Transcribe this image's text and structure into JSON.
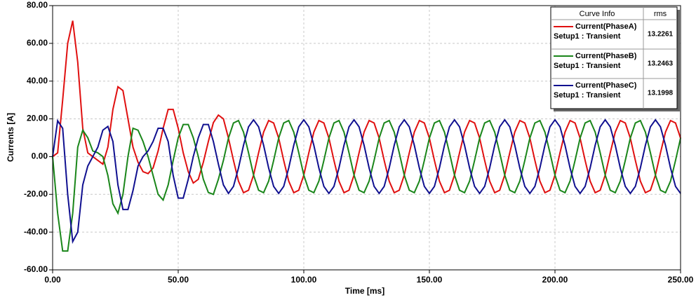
{
  "chart_data": {
    "type": "line",
    "x_label": "Time [ms]",
    "y_label": "Currents [A]",
    "xlim": [
      0,
      250
    ],
    "ylim": [
      -60,
      80
    ],
    "grid": true,
    "xticks": [
      {
        "value": 0,
        "label": "0.00"
      },
      {
        "value": 50,
        "label": "50.00"
      },
      {
        "value": 100,
        "label": "100.00"
      },
      {
        "value": 150,
        "label": "150.00"
      },
      {
        "value": 200,
        "label": "200.00"
      },
      {
        "value": 250,
        "label": "250.00"
      }
    ],
    "yticks": [
      {
        "value": -60,
        "label": "-60.00"
      },
      {
        "value": -40,
        "label": "-40.00"
      },
      {
        "value": -20,
        "label": "-20.00"
      },
      {
        "value": 0,
        "label": "0.00"
      },
      {
        "value": 20,
        "label": "20.00"
      },
      {
        "value": 40,
        "label": "40.00"
      },
      {
        "value": 60,
        "label": "60.00"
      },
      {
        "value": 80,
        "label": "80.00"
      }
    ],
    "legend_headers": [
      "Curve Info",
      "rms"
    ],
    "legend_position": "upper right",
    "x": [
      0,
      2,
      4,
      6,
      8,
      10,
      12,
      14,
      16,
      18,
      20,
      22,
      24,
      26,
      28,
      30,
      32,
      34,
      36,
      38,
      40,
      42,
      44,
      46,
      48,
      50,
      52,
      54,
      56,
      58,
      60,
      62,
      64,
      66,
      68,
      70,
      72,
      74,
      76,
      78,
      80,
      82,
      84,
      86,
      88,
      90,
      92,
      94,
      96,
      98,
      100,
      102,
      104,
      106,
      108,
      110,
      112,
      114,
      116,
      118,
      120,
      122,
      124,
      126,
      128,
      130,
      132,
      134,
      136,
      138,
      140,
      142,
      144,
      146,
      148,
      150,
      152,
      154,
      156,
      158,
      160,
      162,
      164,
      166,
      168,
      170,
      172,
      174,
      176,
      178,
      180,
      182,
      184,
      186,
      188,
      190,
      192,
      194,
      196,
      198,
      200,
      202,
      204,
      206,
      208,
      210,
      212,
      214,
      216,
      218,
      220,
      222,
      224,
      226,
      228,
      230,
      232,
      234,
      236,
      238,
      240,
      242,
      244,
      246,
      248,
      250
    ],
    "series": [
      {
        "name": "Current(PhaseA)",
        "setup": "Setup1 : Transient",
        "rms": 13.2261,
        "color": "#e01010",
        "values": [
          0,
          2,
          30,
          60,
          72,
          50,
          15,
          2,
          0,
          -2,
          -4,
          5,
          25,
          37,
          35,
          20,
          5,
          -3,
          -8,
          -9,
          -6,
          3,
          15,
          25,
          25,
          15,
          2,
          -8,
          -14,
          -12,
          -3,
          8,
          18,
          22,
          20,
          9.8,
          -2,
          -13,
          -19.1,
          -17.8,
          -9.8,
          2,
          13,
          19.1,
          17.8,
          9.8,
          -2,
          -13,
          -19.1,
          -17.8,
          -9.8,
          2,
          13,
          19.1,
          17.8,
          9.8,
          -2,
          -13,
          -19.1,
          -17.8,
          -9.8,
          2,
          13,
          19.1,
          17.8,
          9.8,
          -2,
          -13,
          -19.1,
          -17.8,
          -9.8,
          2,
          13,
          19.1,
          17.8,
          9.8,
          -2,
          -13,
          -19.1,
          -17.8,
          -9.8,
          2,
          13,
          19.1,
          17.8,
          9.8,
          -2,
          -13,
          -19.1,
          -17.8,
          -9.8,
          2,
          13,
          19.1,
          17.8,
          9.8,
          -2,
          -13,
          -19.1,
          -17.8,
          -9.8,
          2,
          13,
          19.1,
          17.8,
          9.8,
          -2,
          -13,
          -19.1,
          -17.8,
          -9.8,
          2,
          13,
          19.1,
          17.8,
          9.8,
          -2,
          -13,
          -19.1,
          -17.8,
          -9.8,
          2,
          13,
          19.1,
          17.8,
          9.8
        ]
      },
      {
        "name": "Current(PhaseB)",
        "setup": "Setup1 : Transient",
        "rms": 13.2463,
        "color": "#1a861a",
        "values": [
          0,
          -30,
          -50,
          -50,
          -30,
          5,
          14,
          10,
          3,
          2,
          0,
          -10,
          -25,
          -30,
          -20,
          0,
          15,
          14,
          8,
          0,
          -10,
          -20,
          -23,
          -15,
          -2,
          10,
          17,
          17,
          10,
          0,
          -12,
          -19,
          -20,
          -12,
          -2,
          9.8,
          17.8,
          19.1,
          13,
          2,
          -9.8,
          -17.8,
          -19.1,
          -13,
          -2,
          9.8,
          17.8,
          19.1,
          13,
          2,
          -9.8,
          -17.8,
          -19.1,
          -13,
          -2,
          9.8,
          17.8,
          19.1,
          13,
          2,
          -9.8,
          -17.8,
          -19.1,
          -13,
          -2,
          9.8,
          17.8,
          19.1,
          13,
          2,
          -9.8,
          -17.8,
          -19.1,
          -13,
          -2,
          9.8,
          17.8,
          19.1,
          13,
          2,
          -9.8,
          -17.8,
          -19.1,
          -13,
          -2,
          9.8,
          17.8,
          19.1,
          13,
          2,
          -9.8,
          -17.8,
          -19.1,
          -13,
          -2,
          9.8,
          17.8,
          19.1,
          13,
          2,
          -9.8,
          -17.8,
          -19.1,
          -13,
          -2,
          9.8,
          17.8,
          19.1,
          13,
          2,
          -9.8,
          -17.8,
          -19.1,
          -13,
          -2,
          9.8,
          17.8,
          19.1,
          13,
          2,
          -9.8,
          -17.8,
          -19.1,
          -13,
          -2,
          9.8
        ]
      },
      {
        "name": "Current(PhaseC)",
        "setup": "Setup1 : Transient",
        "rms": 13.1998,
        "color": "#101090",
        "values": [
          0,
          19,
          15,
          -20,
          -45,
          -40,
          -15,
          -5,
          0,
          5,
          14,
          16,
          8,
          -15,
          -28,
          -28,
          -18,
          -5,
          0,
          3,
          8,
          15,
          15,
          8,
          -10,
          -22,
          -22,
          -12,
          0,
          10,
          17,
          17,
          8,
          -4,
          -15,
          -19.5,
          -15.8,
          -6,
          6,
          15.8,
          19.5,
          15.8,
          6,
          -6,
          -15.8,
          -19.5,
          -15.8,
          -6,
          6,
          15.8,
          19.5,
          15.8,
          6,
          -6,
          -15.8,
          -19.5,
          -15.8,
          -6,
          6,
          15.8,
          19.5,
          15.8,
          6,
          -6,
          -15.8,
          -19.5,
          -15.8,
          -6,
          6,
          15.8,
          19.5,
          15.8,
          6,
          -6,
          -15.8,
          -19.5,
          -15.8,
          -6,
          6,
          15.8,
          19.5,
          15.8,
          6,
          -6,
          -15.8,
          -19.5,
          -15.8,
          -6,
          6,
          15.8,
          19.5,
          15.8,
          6,
          -6,
          -15.8,
          -19.5,
          -15.8,
          -6,
          6,
          15.8,
          19.5,
          15.8,
          6,
          -6,
          -15.8,
          -19.5,
          -15.8,
          -6,
          6,
          15.8,
          19.5,
          15.8,
          6,
          -6,
          -15.8,
          -19.5,
          -15.8,
          -6,
          6,
          15.8,
          19.5,
          15.8,
          6,
          -6,
          -15.8,
          -19.5
        ]
      }
    ]
  }
}
